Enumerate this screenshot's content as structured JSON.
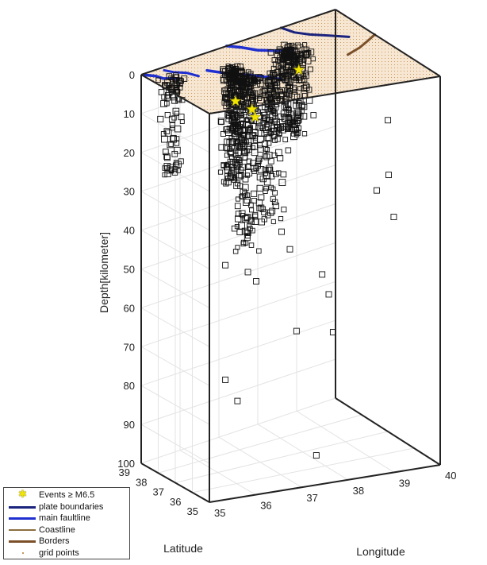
{
  "chart_data": {
    "type": "scatter",
    "projection": "3d",
    "ylabel": "Depth[kilometer]",
    "xlabel_lat": "Latitude",
    "xlabel_lon": "Longitude",
    "depth_ticks": [
      "0",
      "10",
      "20",
      "30",
      "40",
      "50",
      "60",
      "70",
      "80",
      "90",
      "100"
    ],
    "depth_range": [
      0,
      100
    ],
    "lat_ticks": [
      "39",
      "38",
      "37",
      "36",
      "35"
    ],
    "lat_range": [
      35,
      39
    ],
    "lon_ticks": [
      "35",
      "36",
      "37",
      "38",
      "39",
      "40"
    ],
    "lon_range": [
      35,
      40
    ],
    "grid": true,
    "legend_position": "bottom-left",
    "colors": {
      "events": "#111111",
      "large_events": "#f2e600",
      "plate_boundaries": "#1a237e",
      "main_faultline": "#1f2fd0",
      "coastline": "#8b6f3f",
      "borders": "#7b5028",
      "grid_points": "#c69a5a",
      "surface_fill": "#f6e6d2"
    },
    "legend": [
      {
        "label": "Events ≥ M6.5",
        "symbol": "star"
      },
      {
        "label": "plate boundaries",
        "symbol": "plate"
      },
      {
        "label": "main faultline",
        "symbol": "fault"
      },
      {
        "label": "Coastline",
        "symbol": "coast"
      },
      {
        "label": "Borders",
        "symbol": "border"
      },
      {
        "label": "grid points",
        "symbol": "dot"
      }
    ],
    "large_events": [
      {
        "lat": 38.25,
        "lon": 38.6,
        "depth": 8
      },
      {
        "lat": 38.0,
        "lon": 36.9,
        "depth": 10
      },
      {
        "lat": 37.3,
        "lon": 36.95,
        "depth": 10
      },
      {
        "lat": 37.25,
        "lon": 37.0,
        "depth": 12
      }
    ],
    "deep_events": [
      {
        "lat": 36.6,
        "lon": 36.0,
        "depth": 75
      },
      {
        "lat": 37.5,
        "lon": 36.7,
        "depth": 85
      },
      {
        "lat": 35.6,
        "lon": 37.6,
        "depth": 95
      },
      {
        "lat": 36.9,
        "lon": 38.4,
        "depth": 55
      },
      {
        "lat": 36.8,
        "lon": 38.6,
        "depth": 70
      },
      {
        "lat": 36.9,
        "lon": 37.8,
        "depth": 68
      },
      {
        "lat": 37.4,
        "lon": 37.1,
        "depth": 55
      },
      {
        "lat": 37.6,
        "lon": 37.0,
        "depth": 53
      },
      {
        "lat": 36.8,
        "lon": 38.5,
        "depth": 60
      },
      {
        "lat": 36.3,
        "lon": 39.6,
        "depth": 30
      },
      {
        "lat": 36.6,
        "lon": 39.5,
        "depth": 35
      },
      {
        "lat": 36.1,
        "lon": 39.6,
        "depth": 40
      },
      {
        "lat": 36.5,
        "lon": 39.7,
        "depth": 17
      },
      {
        "lat": 38.4,
        "lon": 37.4,
        "depth": 48
      },
      {
        "lat": 37.9,
        "lon": 36.6,
        "depth": 51
      },
      {
        "lat": 37.2,
        "lon": 37.8,
        "depth": 48
      },
      {
        "lat": 37.0,
        "lon": 37.5,
        "depth": 42
      }
    ]
  }
}
